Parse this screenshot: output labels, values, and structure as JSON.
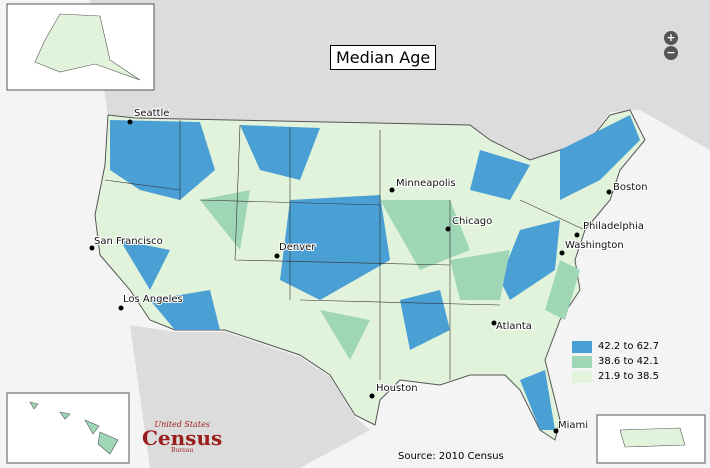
{
  "title": "Median Age",
  "zoom": [
    "+",
    "−"
  ],
  "legend": [
    {
      "label": "42.2 to 62.7",
      "color": "#4a9fd4"
    },
    {
      "label": "38.6 to 42.1",
      "color": "#9fd6b6"
    },
    {
      "label": "21.9 to 38.5",
      "color": "#e2f3dc"
    }
  ],
  "cities": [
    "Seattle",
    "Minneapolis",
    "Boston",
    "Chicago",
    "Philadelphia",
    "San Francisco",
    "Denver",
    "Washington",
    "Los Angeles",
    "Atlanta",
    "Houston",
    "Miami"
  ],
  "source": "Source:  2010 Census",
  "logo": {
    "top": "United States",
    "main": "Census",
    "bottom": "Bureau"
  }
}
